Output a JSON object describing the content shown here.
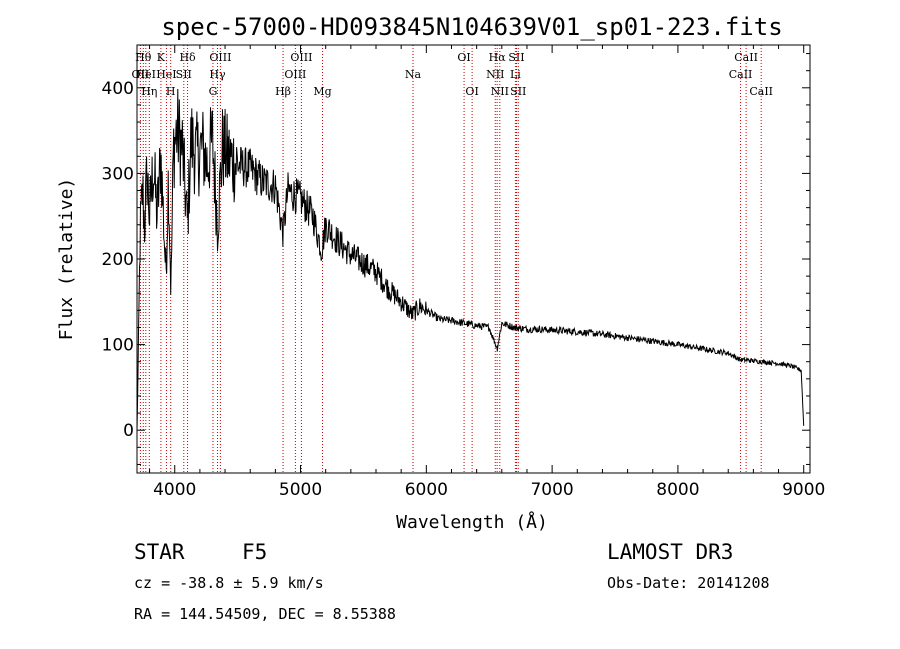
{
  "chart_data": {
    "type": "line",
    "title": "spec-57000-HD093845N104639V01_sp01-223.fits",
    "xlabel": "Wavelength (Å)",
    "ylabel": "Flux (relative)",
    "xlim": [
      3700,
      9050
    ],
    "ylim": [
      -50,
      450
    ],
    "x_ticks": [
      4000,
      5000,
      6000,
      7000,
      8000,
      9000
    ],
    "y_ticks": [
      0,
      100,
      200,
      300,
      400
    ],
    "spectrum_anchors": [
      [
        3700,
        0
      ],
      [
        3710,
        80
      ],
      [
        3725,
        230
      ],
      [
        3745,
        280
      ],
      [
        3760,
        240
      ],
      [
        3780,
        300
      ],
      [
        3800,
        250
      ],
      [
        3830,
        310
      ],
      [
        3860,
        250
      ],
      [
        3890,
        320
      ],
      [
        3930,
        180
      ],
      [
        3950,
        300
      ],
      [
        3970,
        160
      ],
      [
        3990,
        330
      ],
      [
        4020,
        350
      ],
      [
        4060,
        330
      ],
      [
        4101,
        240
      ],
      [
        4130,
        340
      ],
      [
        4170,
        320
      ],
      [
        4220,
        330
      ],
      [
        4260,
        310
      ],
      [
        4300,
        340
      ],
      [
        4340,
        240
      ],
      [
        4380,
        330
      ],
      [
        4420,
        320
      ],
      [
        4500,
        310
      ],
      [
        4600,
        305
      ],
      [
        4700,
        290
      ],
      [
        4800,
        285
      ],
      [
        4861,
        230
      ],
      [
        4900,
        280
      ],
      [
        5000,
        270
      ],
      [
        5100,
        250
      ],
      [
        5167,
        210
      ],
      [
        5200,
        240
      ],
      [
        5300,
        220
      ],
      [
        5400,
        205
      ],
      [
        5500,
        195
      ],
      [
        5600,
        185
      ],
      [
        5700,
        165
      ],
      [
        5800,
        150
      ],
      [
        5889,
        135
      ],
      [
        5950,
        145
      ],
      [
        6000,
        140
      ],
      [
        6100,
        130
      ],
      [
        6200,
        128
      ],
      [
        6300,
        125
      ],
      [
        6400,
        122
      ],
      [
        6500,
        120
      ],
      [
        6563,
        95
      ],
      [
        6600,
        125
      ],
      [
        6700,
        120
      ],
      [
        6800,
        118
      ],
      [
        6900,
        118
      ],
      [
        7000,
        117
      ],
      [
        7200,
        115
      ],
      [
        7400,
        112
      ],
      [
        7600,
        108
      ],
      [
        7800,
        104
      ],
      [
        8000,
        100
      ],
      [
        8200,
        95
      ],
      [
        8400,
        90
      ],
      [
        8498,
        82
      ],
      [
        8542,
        82
      ],
      [
        8662,
        80
      ],
      [
        8800,
        78
      ],
      [
        8900,
        75
      ],
      [
        8980,
        70
      ],
      [
        9000,
        5
      ]
    ],
    "line_ids": [
      {
        "x": 3727,
        "label": "OII",
        "row": 2
      },
      {
        "x": 3750,
        "label": "Hθ",
        "row": 1
      },
      {
        "x": 3770,
        "label": "HeI",
        "row": 2
      },
      {
        "x": 3798,
        "label": "Hη",
        "row": 3
      },
      {
        "x": 3890,
        "label": "K",
        "row": 1
      },
      {
        "x": 3934,
        "label": "HeI",
        "row": 2
      },
      {
        "x": 3968,
        "label": "H",
        "row": 3
      },
      {
        "x": 4102,
        "label": "Hδ",
        "row": 1
      },
      {
        "x": 4072,
        "label": "SII",
        "row": 2
      },
      {
        "x": 4340,
        "label": "Hγ",
        "row": 2
      },
      {
        "x": 4363,
        "label": "OIII",
        "row": 1
      },
      {
        "x": 4304,
        "label": "G",
        "row": 3
      },
      {
        "x": 4861,
        "label": "Hβ",
        "row": 3
      },
      {
        "x": 4959,
        "label": "OIII",
        "row": 2
      },
      {
        "x": 5007,
        "label": "OIII",
        "row": 1
      },
      {
        "x": 5175,
        "label": "Mg",
        "row": 3
      },
      {
        "x": 5894,
        "label": "Na",
        "row": 2
      },
      {
        "x": 6300,
        "label": "OI",
        "row": 1
      },
      {
        "x": 6364,
        "label": "OI",
        "row": 3
      },
      {
        "x": 6548,
        "label": "NII",
        "row": 2
      },
      {
        "x": 6563,
        "label": "Hα",
        "row": 1
      },
      {
        "x": 6584,
        "label": "NII",
        "row": 3
      },
      {
        "x": 6708,
        "label": "Li",
        "row": 2
      },
      {
        "x": 6717,
        "label": "SII",
        "row": 1
      },
      {
        "x": 6731,
        "label": "SII",
        "row": 3
      },
      {
        "x": 8498,
        "label": "CaII",
        "row": 2
      },
      {
        "x": 8542,
        "label": "CaII",
        "row": 1
      },
      {
        "x": 8662,
        "label": "CaII",
        "row": 3
      }
    ]
  },
  "info": {
    "class_label": "STAR",
    "subclass": "F5",
    "survey": "LAMOST DR3",
    "cz": "cz = -38.8 ± 5.9 km/s",
    "obs_date": "Obs-Date: 20141208",
    "radec": "RA = 144.54509, DEC =    8.55388"
  },
  "colors": {
    "spectrum": "#000000",
    "line_markers": "#cc0000"
  }
}
